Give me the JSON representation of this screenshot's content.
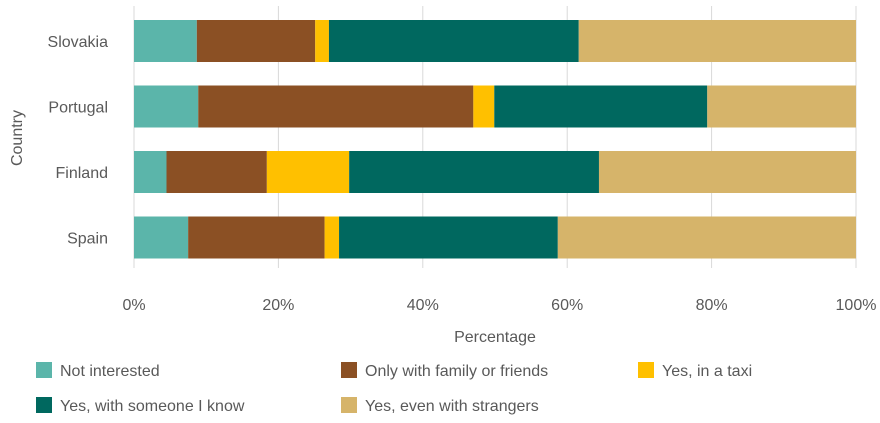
{
  "chart_data": {
    "type": "bar",
    "orientation": "horizontal",
    "stacked": true,
    "categories": [
      "Slovakia",
      "Portugal",
      "Finland",
      "Spain"
    ],
    "series": [
      {
        "name": "Not interested",
        "color": "#5BB5AA",
        "values": [
          8.7,
          8.9,
          4.5,
          7.5
        ]
      },
      {
        "name": "Only with family or friends",
        "color": "#8B5024",
        "values": [
          16.4,
          38.1,
          13.9,
          18.9
        ]
      },
      {
        "name": "Yes, in a taxi",
        "color": "#FFC000",
        "values": [
          1.9,
          2.9,
          11.4,
          2.0
        ]
      },
      {
        "name": "Yes, with someone I know",
        "color": "#00685F",
        "values": [
          34.6,
          29.5,
          34.6,
          30.3
        ]
      },
      {
        "name": "Yes, even with strangers",
        "color": "#D6B46A",
        "values": [
          38.4,
          20.6,
          35.6,
          41.3
        ]
      }
    ],
    "xlabel": "Percentage",
    "ylabel": "Country",
    "xlim": [
      0,
      100
    ],
    "xticks": [
      "0%",
      "20%",
      "40%",
      "60%",
      "80%",
      "100%"
    ],
    "grid": "vertical",
    "legend_position": "bottom"
  }
}
